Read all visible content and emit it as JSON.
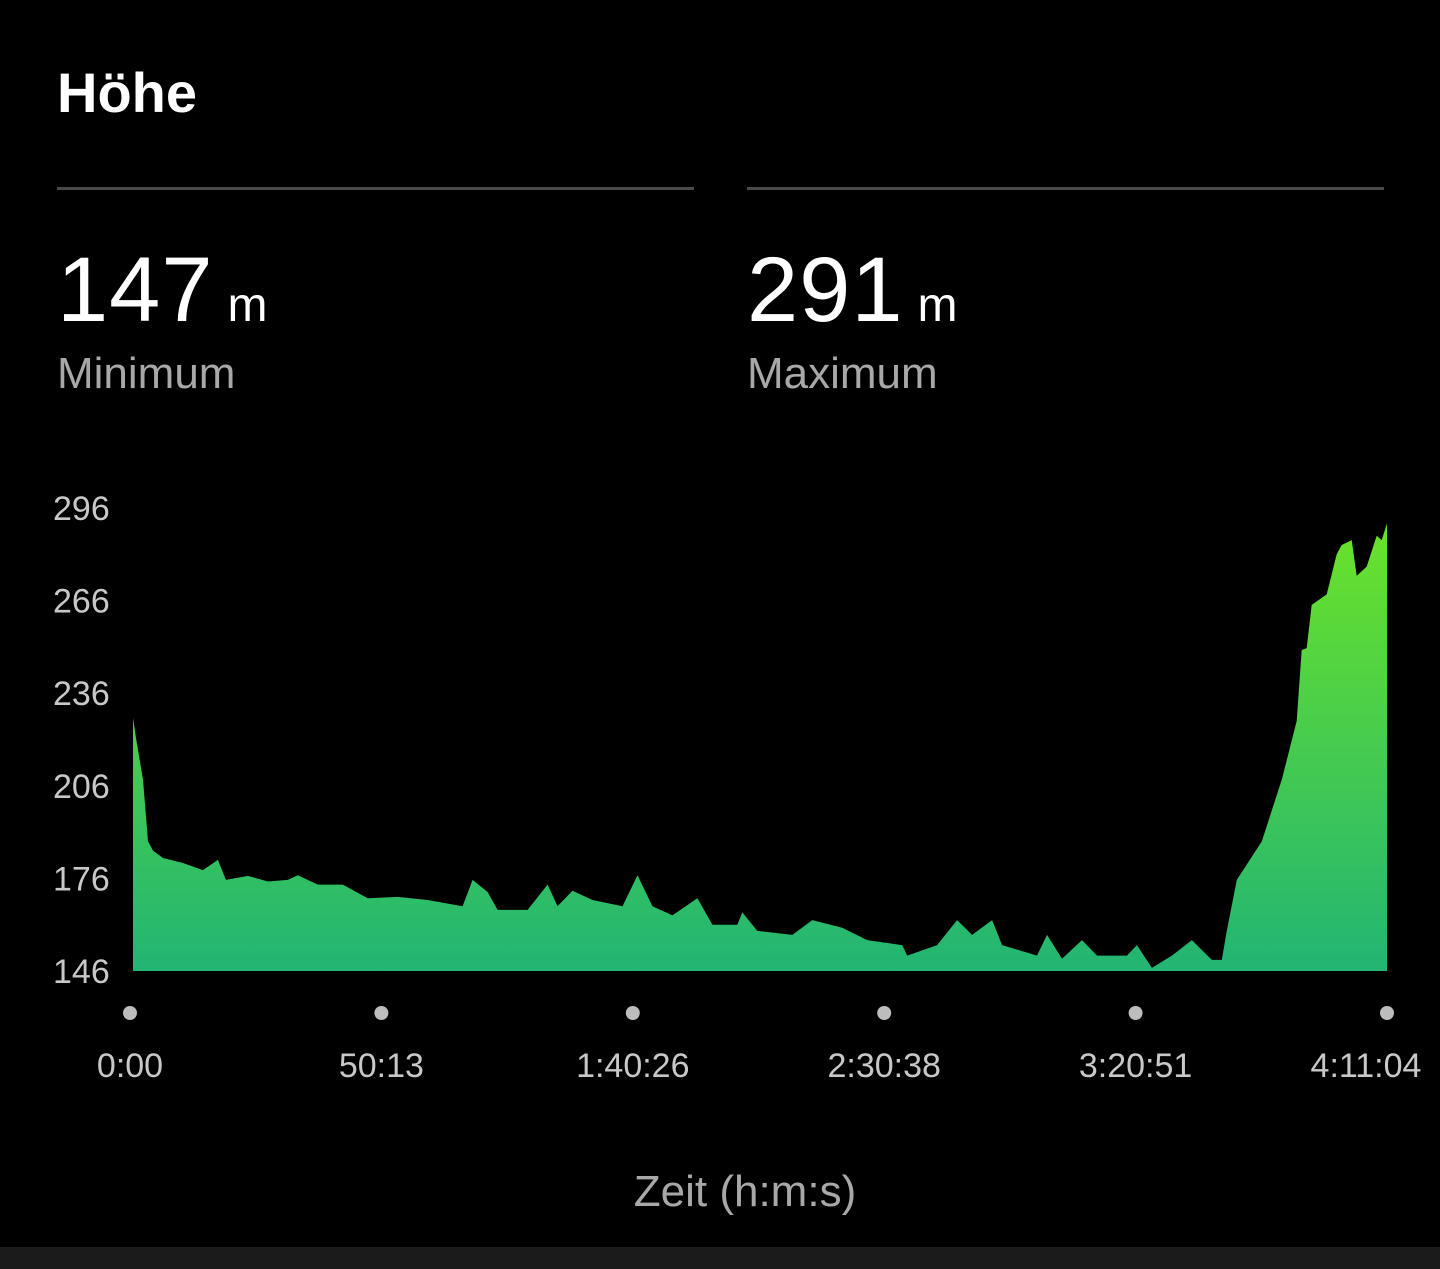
{
  "header": {
    "title": "Höhe"
  },
  "stats": [
    {
      "value": "147",
      "unit": "m",
      "label": "Minimum"
    },
    {
      "value": "291",
      "unit": "m",
      "label": "Maximum"
    }
  ],
  "colors": {
    "fill_top": "#6ae22a",
    "fill_bottom": "#22b573",
    "background": "#000000"
  },
  "chart_data": {
    "type": "area",
    "title": "Höhe",
    "xlabel": "Zeit (h:m:s)",
    "ylabel": "",
    "x_unit": "minutes",
    "xlim": [
      0,
      251.07
    ],
    "ylim": [
      146,
      296
    ],
    "yticks": [
      "296",
      "266",
      "236",
      "206",
      "176",
      "146"
    ],
    "ytick_values": [
      296,
      266,
      236,
      206,
      176,
      146
    ],
    "xticks": [
      "0:00",
      "50:13",
      "1:40:26",
      "2:30:38",
      "3:20:51",
      "4:11:04"
    ],
    "xtick_values": [
      0,
      50.22,
      100.43,
      150.63,
      200.85,
      251.07
    ],
    "grid": false,
    "series": [
      {
        "name": "Höhe",
        "x": [
          0,
          0.6,
          2,
          3,
          4,
          6,
          10,
          14,
          17,
          18.6,
          23,
          27,
          31,
          33,
          37,
          42,
          47,
          53,
          59,
          66,
          68,
          71,
          73,
          79,
          83,
          85,
          88,
          92,
          98,
          101,
          104,
          108,
          113,
          116,
          121,
          122,
          125,
          132,
          136,
          142,
          147,
          154,
          155,
          161,
          165,
          168,
          172,
          174,
          181,
          183,
          186,
          190,
          193,
          199,
          201,
          204,
          208,
          212,
          216,
          218,
          219,
          221,
          226,
          230,
          233,
          234,
          235,
          236,
          239,
          241,
          242,
          244,
          245,
          247,
          249,
          250,
          251.07
        ],
        "y": [
          228,
          221.5,
          208,
          188,
          185,
          182.6,
          181,
          178.7,
          182,
          175.5,
          176.8,
          175,
          175.5,
          177,
          174,
          174,
          169.6,
          170,
          169,
          167,
          175.5,
          171.6,
          165.8,
          165.8,
          174,
          167,
          172,
          169,
          167,
          177,
          167,
          164,
          169.6,
          161,
          161,
          165,
          159,
          157.7,
          162.5,
          160,
          156,
          154.4,
          151,
          154.4,
          162.5,
          157.7,
          162.5,
          154.4,
          151,
          157.7,
          150,
          156,
          151,
          151,
          154.4,
          147,
          151,
          156,
          149.6,
          149.6,
          159,
          175.5,
          188,
          208,
          227,
          250,
          250.6,
          264.6,
          268,
          281,
          284,
          285.6,
          274,
          277,
          287,
          285.6,
          291
        ]
      }
    ]
  }
}
